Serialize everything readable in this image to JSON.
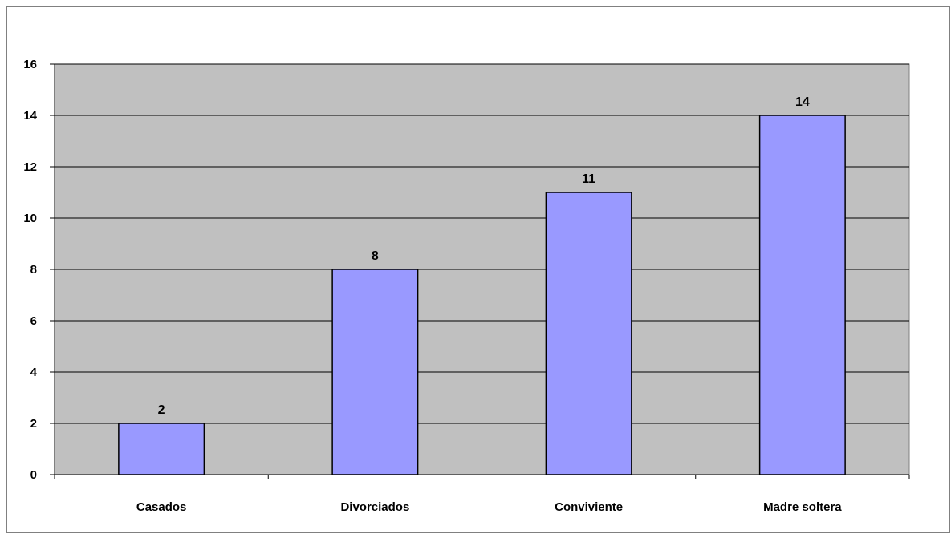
{
  "chart_data": {
    "type": "bar",
    "categories": [
      "Casados",
      "Divorciados",
      "Conviviente",
      "Madre soltera"
    ],
    "values": [
      2,
      8,
      11,
      14
    ],
    "ylim": [
      0,
      16
    ],
    "yticks": [
      0,
      2,
      4,
      6,
      8,
      10,
      12,
      14,
      16
    ],
    "ytick_labels": [
      "0",
      "2",
      "4",
      "6",
      "8",
      "10",
      "12",
      "14",
      "16"
    ],
    "data_labels": [
      "2",
      "8",
      "11",
      "14"
    ],
    "grid": true,
    "legend": "none",
    "colors": {
      "bar_fill": "#9999ff",
      "bar_stroke": "#000000",
      "plot_background": "#c0c0c0",
      "gridline": "#000000"
    }
  }
}
